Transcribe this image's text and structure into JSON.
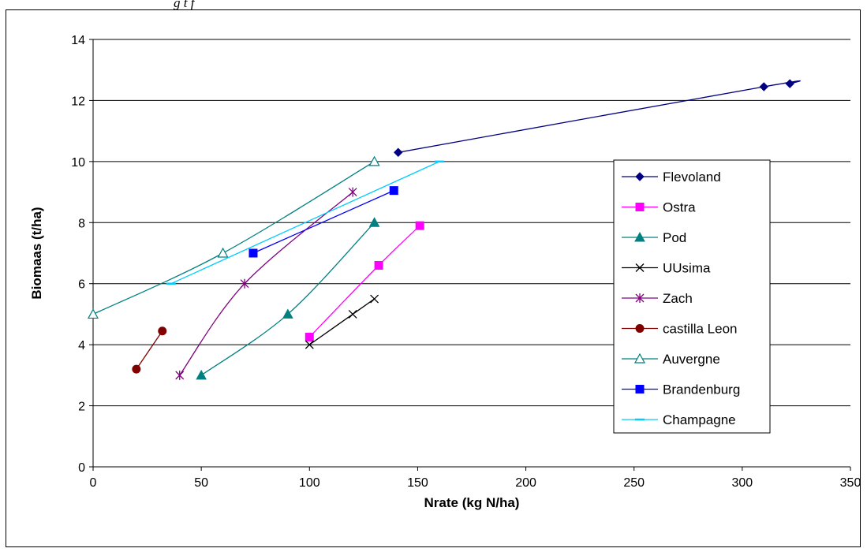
{
  "caption": {
    "text": "g t f"
  },
  "chart_data": {
    "type": "line",
    "title": "",
    "xlabel": "Nrate (kg N/ha)",
    "ylabel": "Biomaas (t/ha)",
    "xlim": [
      0,
      350
    ],
    "ylim": [
      0,
      14
    ],
    "x_ticks": [
      0,
      50,
      100,
      150,
      200,
      250,
      300,
      350
    ],
    "y_ticks": [
      0,
      2,
      4,
      6,
      8,
      10,
      12,
      14
    ],
    "grid": "horizontal",
    "legend_position": "right",
    "series": [
      {
        "name": "Flevoland",
        "color": "#000080",
        "marker": "diamond",
        "points": [
          [
            141,
            10.3
          ],
          [
            310,
            12.45
          ],
          [
            322,
            12.55
          ]
        ]
      },
      {
        "name": "Ostra",
        "color": "#ff00ff",
        "marker": "square",
        "points": [
          [
            100,
            4.25
          ],
          [
            132,
            6.6
          ],
          [
            151,
            7.9
          ]
        ]
      },
      {
        "name": "Pod",
        "color": "#008080",
        "marker": "triangle",
        "points": [
          [
            50,
            3.0
          ],
          [
            90,
            5.0
          ],
          [
            130,
            8.0
          ]
        ]
      },
      {
        "name": "UUsima",
        "color": "#000000",
        "marker": "x",
        "points": [
          [
            100,
            4.0
          ],
          [
            120,
            5.0
          ],
          [
            130,
            5.5
          ]
        ]
      },
      {
        "name": "Zach",
        "color": "#800080",
        "marker": "star",
        "points": [
          [
            40,
            3.0
          ],
          [
            70,
            6.0
          ],
          [
            120,
            9.0
          ]
        ]
      },
      {
        "name": "castilla Leon",
        "color": "#800000",
        "marker": "circle",
        "points": [
          [
            20,
            3.2
          ],
          [
            32,
            4.45
          ]
        ]
      },
      {
        "name": "Auvergne",
        "color": "#008080",
        "marker": "triangle-open",
        "points": [
          [
            0,
            5.0
          ],
          [
            60,
            7.0
          ],
          [
            130,
            10.0
          ]
        ]
      },
      {
        "name": "Brandenburg",
        "color": "#0000ff",
        "marker": "square",
        "points": [
          [
            74,
            7.0
          ],
          [
            139,
            9.05
          ]
        ]
      },
      {
        "name": "Champagne",
        "color": "#00ccff",
        "marker": "dash",
        "points": [
          [
            36,
            6.0
          ],
          [
            160,
            10.0
          ]
        ]
      }
    ]
  }
}
